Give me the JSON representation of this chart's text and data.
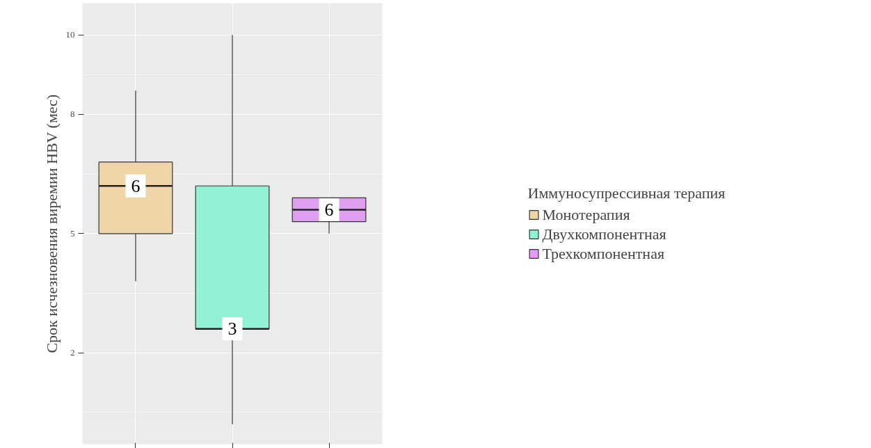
{
  "chart_data": {
    "type": "box",
    "ylabel": "Срок исчезновения виремии HBV (мес)",
    "legend_title": "Иммуносупрессивная терапия",
    "categories": [
      null,
      null,
      null
    ],
    "series": [
      {
        "name": "Монотерапия",
        "color": "#f0d5a8",
        "boxes": [
          {
            "low": 3.8,
            "q1": 5.0,
            "median": 6.2,
            "q3": 6.8,
            "high": 8.6
          },
          null,
          null
        ]
      },
      {
        "name": "Двухкомпонентная",
        "color": "#93f2d6",
        "boxes": [
          null,
          {
            "low": 0.2,
            "q1": 2.6,
            "median": 2.6,
            "q3": 6.2,
            "high": 10.0
          },
          null
        ]
      },
      {
        "name": "Трехкомпонентная",
        "color": "#e09ef0",
        "boxes": [
          null,
          null,
          {
            "low": 5.0,
            "q1": 5.3,
            "median": 5.6,
            "q3": 5.9,
            "high": 5.9
          }
        ]
      }
    ],
    "value_labels": [
      "6",
      "3",
      "6"
    ],
    "ylim": [
      -0.3,
      10.8
    ],
    "yticks": [
      2,
      5,
      8,
      10
    ],
    "grid": true,
    "legend": "right",
    "tick_labels": "y"
  }
}
